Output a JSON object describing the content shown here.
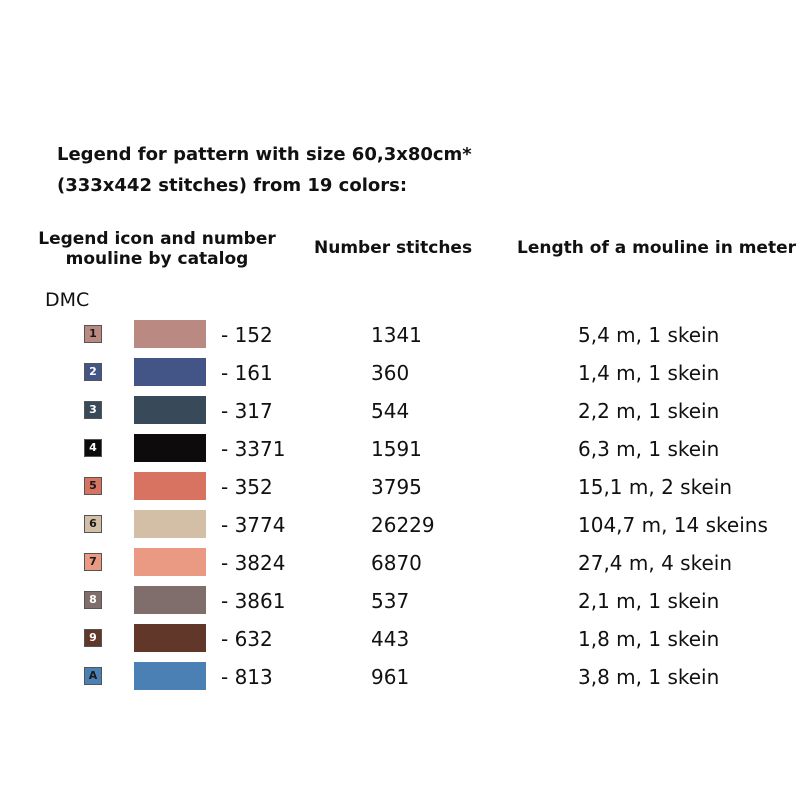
{
  "title": {
    "line1": "Legend for pattern with size 60,3x80cm*",
    "line2": "(333x442 stitches) from 19 colors:"
  },
  "headers": {
    "icon_col": "Legend icon and number\nmouline by catalog",
    "stitches_col": "Number stitches",
    "length_col": "Length of a mouline in meter"
  },
  "brand": "DMC",
  "rows": [
    {
      "icon": "1",
      "icon_bg": "#b98982",
      "icon_fg": "#1a1a1a",
      "swatch": "#b98982",
      "code": "- 152",
      "stitches": "1341",
      "length": "5,4 m, 1 skein"
    },
    {
      "icon": "2",
      "icon_bg": "#435587",
      "icon_fg": "#ffffff",
      "swatch": "#435587",
      "code": "- 161",
      "stitches": "360",
      "length": "1,4 m, 1 skein"
    },
    {
      "icon": "3",
      "icon_bg": "#384959",
      "icon_fg": "#ffffff",
      "swatch": "#384959",
      "code": "- 317",
      "stitches": "544",
      "length": "2,2 m, 1 skein"
    },
    {
      "icon": "4",
      "icon_bg": "#0d0b0c",
      "icon_fg": "#ffffff",
      "swatch": "#0d0b0c",
      "code": "- 3371",
      "stitches": "1591",
      "length": "6,3 m, 1 skein"
    },
    {
      "icon": "5",
      "icon_bg": "#d87362",
      "icon_fg": "#1a1a1a",
      "swatch": "#d87362",
      "code": "- 352",
      "stitches": "3795",
      "length": "15,1 m, 2 skein"
    },
    {
      "icon": "6",
      "icon_bg": "#d3bfa5",
      "icon_fg": "#1a1a1a",
      "swatch": "#d3bfa5",
      "code": "- 3774",
      "stitches": "26229",
      "length": "104,7 m, 14 skeins"
    },
    {
      "icon": "7",
      "icon_bg": "#ea9a83",
      "icon_fg": "#1a1a1a",
      "swatch": "#ea9a83",
      "code": "- 3824",
      "stitches": "6870",
      "length": "27,4 m, 4 skein"
    },
    {
      "icon": "8",
      "icon_bg": "#7f6e6b",
      "icon_fg": "#ffffff",
      "swatch": "#7f6e6b",
      "code": "- 3861",
      "stitches": "537",
      "length": "2,1 m, 1 skein"
    },
    {
      "icon": "9",
      "icon_bg": "#61372a",
      "icon_fg": "#ffffff",
      "swatch": "#61372a",
      "code": "- 632",
      "stitches": "443",
      "length": "1,8 m, 1 skein"
    },
    {
      "icon": "A",
      "icon_bg": "#4a80b3",
      "icon_fg": "#1a1a1a",
      "swatch": "#4a80b3",
      "code": "- 813",
      "stitches": "961",
      "length": "3,8 m, 1 skein"
    }
  ]
}
